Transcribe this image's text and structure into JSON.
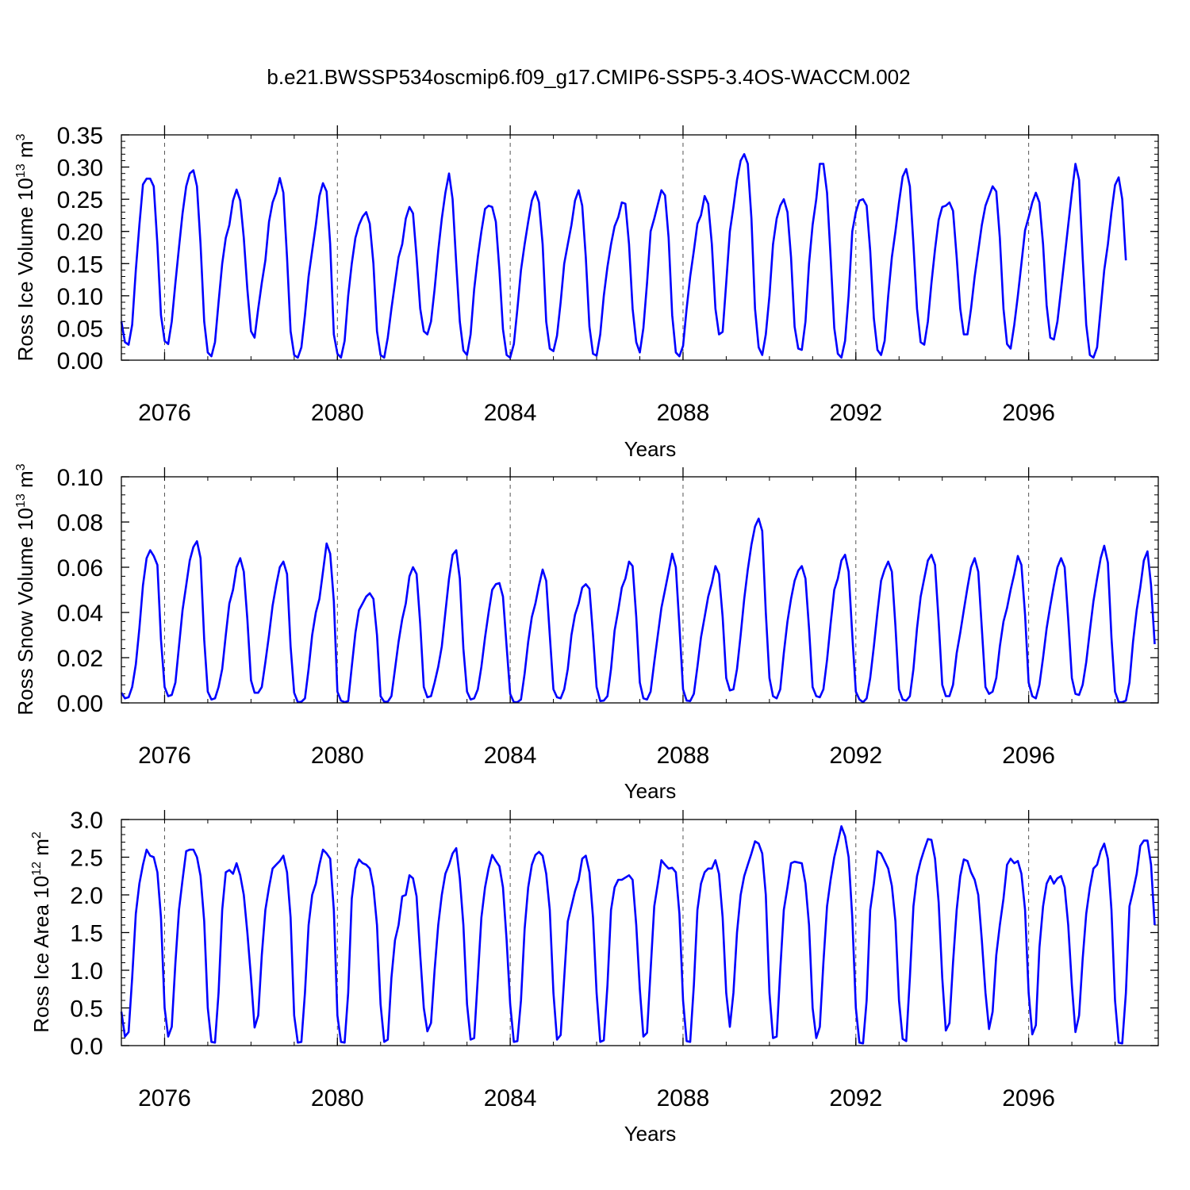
{
  "title": "b.e21.BWSSP534oscmip6.f09_g17.CMIP6-SSP5-3.4OS-WACCM.002",
  "x_tick_labels": [
    "2076",
    "2080",
    "2084",
    "2088",
    "2092",
    "2096"
  ],
  "chart_data": [
    {
      "type": "line",
      "xlabel": "Years",
      "ylabel": {
        "text": "Ross Ice Volume 10",
        "exp": "13",
        "unit": " m",
        "unit_exp": "3"
      },
      "xlim": [
        2075.0,
        2099.0
      ],
      "ylim": [
        0.0,
        0.35
      ],
      "yticks": [
        0.0,
        0.05,
        0.1,
        0.15,
        0.2,
        0.25,
        0.3,
        0.35
      ],
      "ytick_labels": [
        "0.00",
        "0.05",
        "0.10",
        "0.15",
        "0.20",
        "0.25",
        "0.30",
        "0.35"
      ],
      "xticks": [
        2076,
        2080,
        2084,
        2088,
        2092,
        2096
      ],
      "series": [
        {
          "color": "#0000ff",
          "x_start": 2075.0,
          "x_step": 0.0833333,
          "values": [
            0.06,
            0.028,
            0.024,
            0.055,
            0.14,
            0.21,
            0.273,
            0.282,
            0.282,
            0.27,
            0.18,
            0.07,
            0.03,
            0.025,
            0.06,
            0.12,
            0.175,
            0.228,
            0.27,
            0.29,
            0.295,
            0.27,
            0.18,
            0.06,
            0.012,
            0.006,
            0.028,
            0.09,
            0.15,
            0.19,
            0.21,
            0.248,
            0.265,
            0.248,
            0.19,
            0.11,
            0.045,
            0.035,
            0.08,
            0.12,
            0.155,
            0.215,
            0.245,
            0.26,
            0.283,
            0.26,
            0.16,
            0.045,
            0.008,
            0.004,
            0.02,
            0.07,
            0.13,
            0.17,
            0.21,
            0.255,
            0.275,
            0.262,
            0.18,
            0.04,
            0.01,
            0.004,
            0.03,
            0.1,
            0.15,
            0.19,
            0.21,
            0.223,
            0.23,
            0.212,
            0.15,
            0.045,
            0.008,
            0.004,
            0.035,
            0.08,
            0.12,
            0.16,
            0.18,
            0.22,
            0.238,
            0.228,
            0.16,
            0.08,
            0.045,
            0.04,
            0.06,
            0.11,
            0.17,
            0.22,
            0.26,
            0.29,
            0.25,
            0.15,
            0.06,
            0.015,
            0.008,
            0.04,
            0.11,
            0.16,
            0.2,
            0.235,
            0.24,
            0.238,
            0.215,
            0.14,
            0.048,
            0.008,
            0.004,
            0.025,
            0.08,
            0.14,
            0.18,
            0.215,
            0.248,
            0.262,
            0.245,
            0.18,
            0.06,
            0.018,
            0.014,
            0.038,
            0.09,
            0.15,
            0.18,
            0.21,
            0.248,
            0.264,
            0.24,
            0.16,
            0.052,
            0.01,
            0.007,
            0.04,
            0.1,
            0.145,
            0.18,
            0.208,
            0.222,
            0.245,
            0.243,
            0.18,
            0.08,
            0.028,
            0.012,
            0.05,
            0.12,
            0.2,
            0.22,
            0.242,
            0.264,
            0.256,
            0.19,
            0.07,
            0.012,
            0.006,
            0.022,
            0.08,
            0.13,
            0.17,
            0.212,
            0.225,
            0.255,
            0.243,
            0.18,
            0.08,
            0.04,
            0.044,
            0.12,
            0.2,
            0.238,
            0.28,
            0.31,
            0.32,
            0.305,
            0.22,
            0.08,
            0.02,
            0.008,
            0.04,
            0.1,
            0.18,
            0.22,
            0.24,
            0.25,
            0.23,
            0.16,
            0.052,
            0.018,
            0.016,
            0.06,
            0.15,
            0.21,
            0.25,
            0.305,
            0.305,
            0.26,
            0.16,
            0.05,
            0.01,
            0.004,
            0.03,
            0.1,
            0.2,
            0.23,
            0.248,
            0.25,
            0.24,
            0.17,
            0.065,
            0.016,
            0.008,
            0.03,
            0.1,
            0.16,
            0.2,
            0.245,
            0.285,
            0.297,
            0.27,
            0.18,
            0.08,
            0.028,
            0.024,
            0.06,
            0.12,
            0.172,
            0.218,
            0.238,
            0.24,
            0.245,
            0.232,
            0.16,
            0.08,
            0.04,
            0.04,
            0.08,
            0.13,
            0.17,
            0.21,
            0.24,
            0.255,
            0.27,
            0.262,
            0.19,
            0.08,
            0.025,
            0.018,
            0.055,
            0.1,
            0.15,
            0.202,
            0.222,
            0.245,
            0.26,
            0.245,
            0.18,
            0.085,
            0.035,
            0.032,
            0.06,
            0.11,
            0.16,
            0.21,
            0.26,
            0.305,
            0.28,
            0.16,
            0.055,
            0.008,
            0.004,
            0.02,
            0.08,
            0.14,
            0.18,
            0.23,
            0.272,
            0.284,
            0.25,
            0.155
          ]
        }
      ]
    },
    {
      "type": "line",
      "xlabel": "Years",
      "ylabel": {
        "text": "Ross Snow Volume 10",
        "exp": "13",
        "unit": " m",
        "unit_exp": "3"
      },
      "xlim": [
        2075.0,
        2099.0
      ],
      "ylim": [
        0.0,
        0.1
      ],
      "yticks": [
        0.0,
        0.02,
        0.04,
        0.06,
        0.08,
        0.1
      ],
      "ytick_labels": [
        "0.00",
        "0.02",
        "0.04",
        "0.06",
        "0.08",
        "0.10"
      ],
      "xticks": [
        2076,
        2080,
        2084,
        2088,
        2092,
        2096
      ],
      "series": [
        {
          "color": "#0000ff",
          "x_start": 2075.0,
          "x_step": 0.0833333,
          "values": [
            0.0045,
            0.002,
            0.0025,
            0.007,
            0.017,
            0.033,
            0.052,
            0.064,
            0.0675,
            0.065,
            0.061,
            0.028,
            0.007,
            0.003,
            0.0035,
            0.009,
            0.025,
            0.041,
            0.052,
            0.063,
            0.069,
            0.0715,
            0.064,
            0.028,
            0.005,
            0.0015,
            0.002,
            0.007,
            0.015,
            0.03,
            0.044,
            0.05,
            0.06,
            0.064,
            0.058,
            0.037,
            0.01,
            0.0045,
            0.0045,
            0.007,
            0.018,
            0.03,
            0.043,
            0.052,
            0.06,
            0.0625,
            0.057,
            0.025,
            0.0045,
            0.0003,
            0.0005,
            0.002,
            0.015,
            0.03,
            0.04,
            0.046,
            0.058,
            0.0705,
            0.066,
            0.045,
            0.005,
            0.001,
            0.0003,
            0.0008,
            0.016,
            0.031,
            0.041,
            0.044,
            0.047,
            0.0485,
            0.046,
            0.03,
            0.003,
            0.0005,
            0.0005,
            0.003,
            0.015,
            0.027,
            0.037,
            0.044,
            0.056,
            0.06,
            0.057,
            0.035,
            0.007,
            0.0025,
            0.003,
            0.009,
            0.016,
            0.025,
            0.04,
            0.055,
            0.0655,
            0.0675,
            0.055,
            0.024,
            0.005,
            0.0015,
            0.002,
            0.006,
            0.016,
            0.029,
            0.04,
            0.05,
            0.0525,
            0.053,
            0.047,
            0.025,
            0.004,
            0.0003,
            0.0003,
            0.0015,
            0.013,
            0.027,
            0.038,
            0.044,
            0.052,
            0.059,
            0.054,
            0.03,
            0.006,
            0.0025,
            0.002,
            0.006,
            0.015,
            0.03,
            0.039,
            0.044,
            0.051,
            0.0525,
            0.0505,
            0.03,
            0.007,
            0.0008,
            0.001,
            0.003,
            0.015,
            0.032,
            0.041,
            0.051,
            0.055,
            0.0625,
            0.0605,
            0.038,
            0.009,
            0.002,
            0.0015,
            0.005,
            0.018,
            0.03,
            0.042,
            0.05,
            0.058,
            0.066,
            0.06,
            0.034,
            0.006,
            0.001,
            0.0008,
            0.004,
            0.016,
            0.029,
            0.038,
            0.047,
            0.053,
            0.0605,
            0.057,
            0.038,
            0.011,
            0.0055,
            0.006,
            0.015,
            0.03,
            0.046,
            0.059,
            0.07,
            0.078,
            0.0815,
            0.076,
            0.04,
            0.011,
            0.003,
            0.002,
            0.006,
            0.022,
            0.036,
            0.046,
            0.054,
            0.0585,
            0.0605,
            0.055,
            0.033,
            0.007,
            0.003,
            0.0025,
            0.006,
            0.019,
            0.035,
            0.05,
            0.055,
            0.063,
            0.0655,
            0.058,
            0.03,
            0.005,
            0.0015,
            0.0003,
            0.002,
            0.011,
            0.025,
            0.04,
            0.054,
            0.059,
            0.0625,
            0.058,
            0.034,
            0.006,
            0.0015,
            0.001,
            0.003,
            0.015,
            0.033,
            0.047,
            0.055,
            0.063,
            0.0655,
            0.061,
            0.036,
            0.008,
            0.003,
            0.003,
            0.008,
            0.022,
            0.031,
            0.041,
            0.051,
            0.06,
            0.064,
            0.058,
            0.033,
            0.007,
            0.004,
            0.005,
            0.011,
            0.025,
            0.036,
            0.042,
            0.05,
            0.057,
            0.065,
            0.061,
            0.039,
            0.009,
            0.003,
            0.002,
            0.008,
            0.02,
            0.033,
            0.043,
            0.052,
            0.06,
            0.064,
            0.06,
            0.037,
            0.011,
            0.004,
            0.0035,
            0.008,
            0.018,
            0.032,
            0.045,
            0.055,
            0.064,
            0.0695,
            0.062,
            0.029,
            0.005,
            0.0003,
            0.0003,
            0.001,
            0.009,
            0.027,
            0.041,
            0.051,
            0.063,
            0.067,
            0.052,
            0.026
          ]
        }
      ]
    },
    {
      "type": "line",
      "xlabel": "Years",
      "ylabel": {
        "text": "Ross Ice Area 10",
        "exp": "12",
        "unit": " m",
        "unit_exp": "2"
      },
      "xlim": [
        2075.0,
        2099.0
      ],
      "ylim": [
        0.0,
        3.0
      ],
      "yticks": [
        0.0,
        0.5,
        1.0,
        1.5,
        2.0,
        2.5,
        3.0
      ],
      "ytick_labels": [
        "0.0",
        "0.5",
        "1.0",
        "1.5",
        "2.0",
        "2.5",
        "3.0"
      ],
      "xticks": [
        2076,
        2080,
        2084,
        2088,
        2092,
        2096
      ],
      "series": [
        {
          "color": "#0000ff",
          "x_start": 2075.0,
          "x_step": 0.0833333,
          "values": [
            0.45,
            0.12,
            0.18,
            0.9,
            1.75,
            2.15,
            2.4,
            2.6,
            2.52,
            2.5,
            2.3,
            1.7,
            0.5,
            0.12,
            0.25,
            1.1,
            1.8,
            2.2,
            2.58,
            2.6,
            2.6,
            2.5,
            2.25,
            1.65,
            0.5,
            0.05,
            0.04,
            0.7,
            1.8,
            2.3,
            2.33,
            2.28,
            2.42,
            2.26,
            2.0,
            1.5,
            0.9,
            0.24,
            0.4,
            1.2,
            1.8,
            2.1,
            2.35,
            2.4,
            2.45,
            2.52,
            2.3,
            1.7,
            0.4,
            0.04,
            0.05,
            0.7,
            1.6,
            2.0,
            2.15,
            2.4,
            2.6,
            2.55,
            2.48,
            1.8,
            0.4,
            0.05,
            0.04,
            0.7,
            1.95,
            2.35,
            2.47,
            2.42,
            2.4,
            2.35,
            2.1,
            1.6,
            0.55,
            0.05,
            0.08,
            0.9,
            1.4,
            1.6,
            1.98,
            2.0,
            2.26,
            2.22,
            1.98,
            1.2,
            0.5,
            0.19,
            0.3,
            1.0,
            1.6,
            2.0,
            2.28,
            2.4,
            2.55,
            2.62,
            2.22,
            1.6,
            0.55,
            0.08,
            0.1,
            0.9,
            1.7,
            2.1,
            2.35,
            2.53,
            2.45,
            2.38,
            2.1,
            1.4,
            0.55,
            0.05,
            0.06,
            0.6,
            1.55,
            2.1,
            2.4,
            2.53,
            2.57,
            2.52,
            2.28,
            1.8,
            0.7,
            0.08,
            0.14,
            0.9,
            1.65,
            1.85,
            2.05,
            2.2,
            2.48,
            2.52,
            2.3,
            1.7,
            0.7,
            0.05,
            0.07,
            0.8,
            1.8,
            2.1,
            2.2,
            2.2,
            2.23,
            2.26,
            2.2,
            1.6,
            0.75,
            0.12,
            0.17,
            1.0,
            1.85,
            2.15,
            2.46,
            2.4,
            2.35,
            2.36,
            2.3,
            1.75,
            0.6,
            0.06,
            0.05,
            0.8,
            1.8,
            2.15,
            2.3,
            2.35,
            2.35,
            2.46,
            2.28,
            1.7,
            0.7,
            0.25,
            0.7,
            1.5,
            2.0,
            2.25,
            2.4,
            2.55,
            2.71,
            2.68,
            2.55,
            2.0,
            0.7,
            0.1,
            0.12,
            1.0,
            1.8,
            2.1,
            2.42,
            2.44,
            2.43,
            2.42,
            2.15,
            1.6,
            0.5,
            0.1,
            0.25,
            1.1,
            1.85,
            2.2,
            2.5,
            2.7,
            2.91,
            2.78,
            2.5,
            1.7,
            0.5,
            0.04,
            0.03,
            0.6,
            1.8,
            2.15,
            2.58,
            2.55,
            2.45,
            2.35,
            2.12,
            1.65,
            0.6,
            0.09,
            0.06,
            0.9,
            1.85,
            2.25,
            2.45,
            2.6,
            2.74,
            2.73,
            2.48,
            1.9,
            0.9,
            0.2,
            0.3,
            1.1,
            1.8,
            2.25,
            2.47,
            2.45,
            2.3,
            2.2,
            2.0,
            1.4,
            0.7,
            0.22,
            0.45,
            1.2,
            1.6,
            1.95,
            2.4,
            2.48,
            2.42,
            2.45,
            2.28,
            1.8,
            0.7,
            0.15,
            0.27,
            1.3,
            1.85,
            2.15,
            2.25,
            2.15,
            2.22,
            2.25,
            2.1,
            1.6,
            0.8,
            0.18,
            0.4,
            1.15,
            1.75,
            2.1,
            2.35,
            2.4,
            2.58,
            2.68,
            2.48,
            1.8,
            0.6,
            0.04,
            0.03,
            0.7,
            1.85,
            2.05,
            2.28,
            2.65,
            2.72,
            2.72,
            2.4,
            1.6
          ]
        }
      ]
    }
  ]
}
